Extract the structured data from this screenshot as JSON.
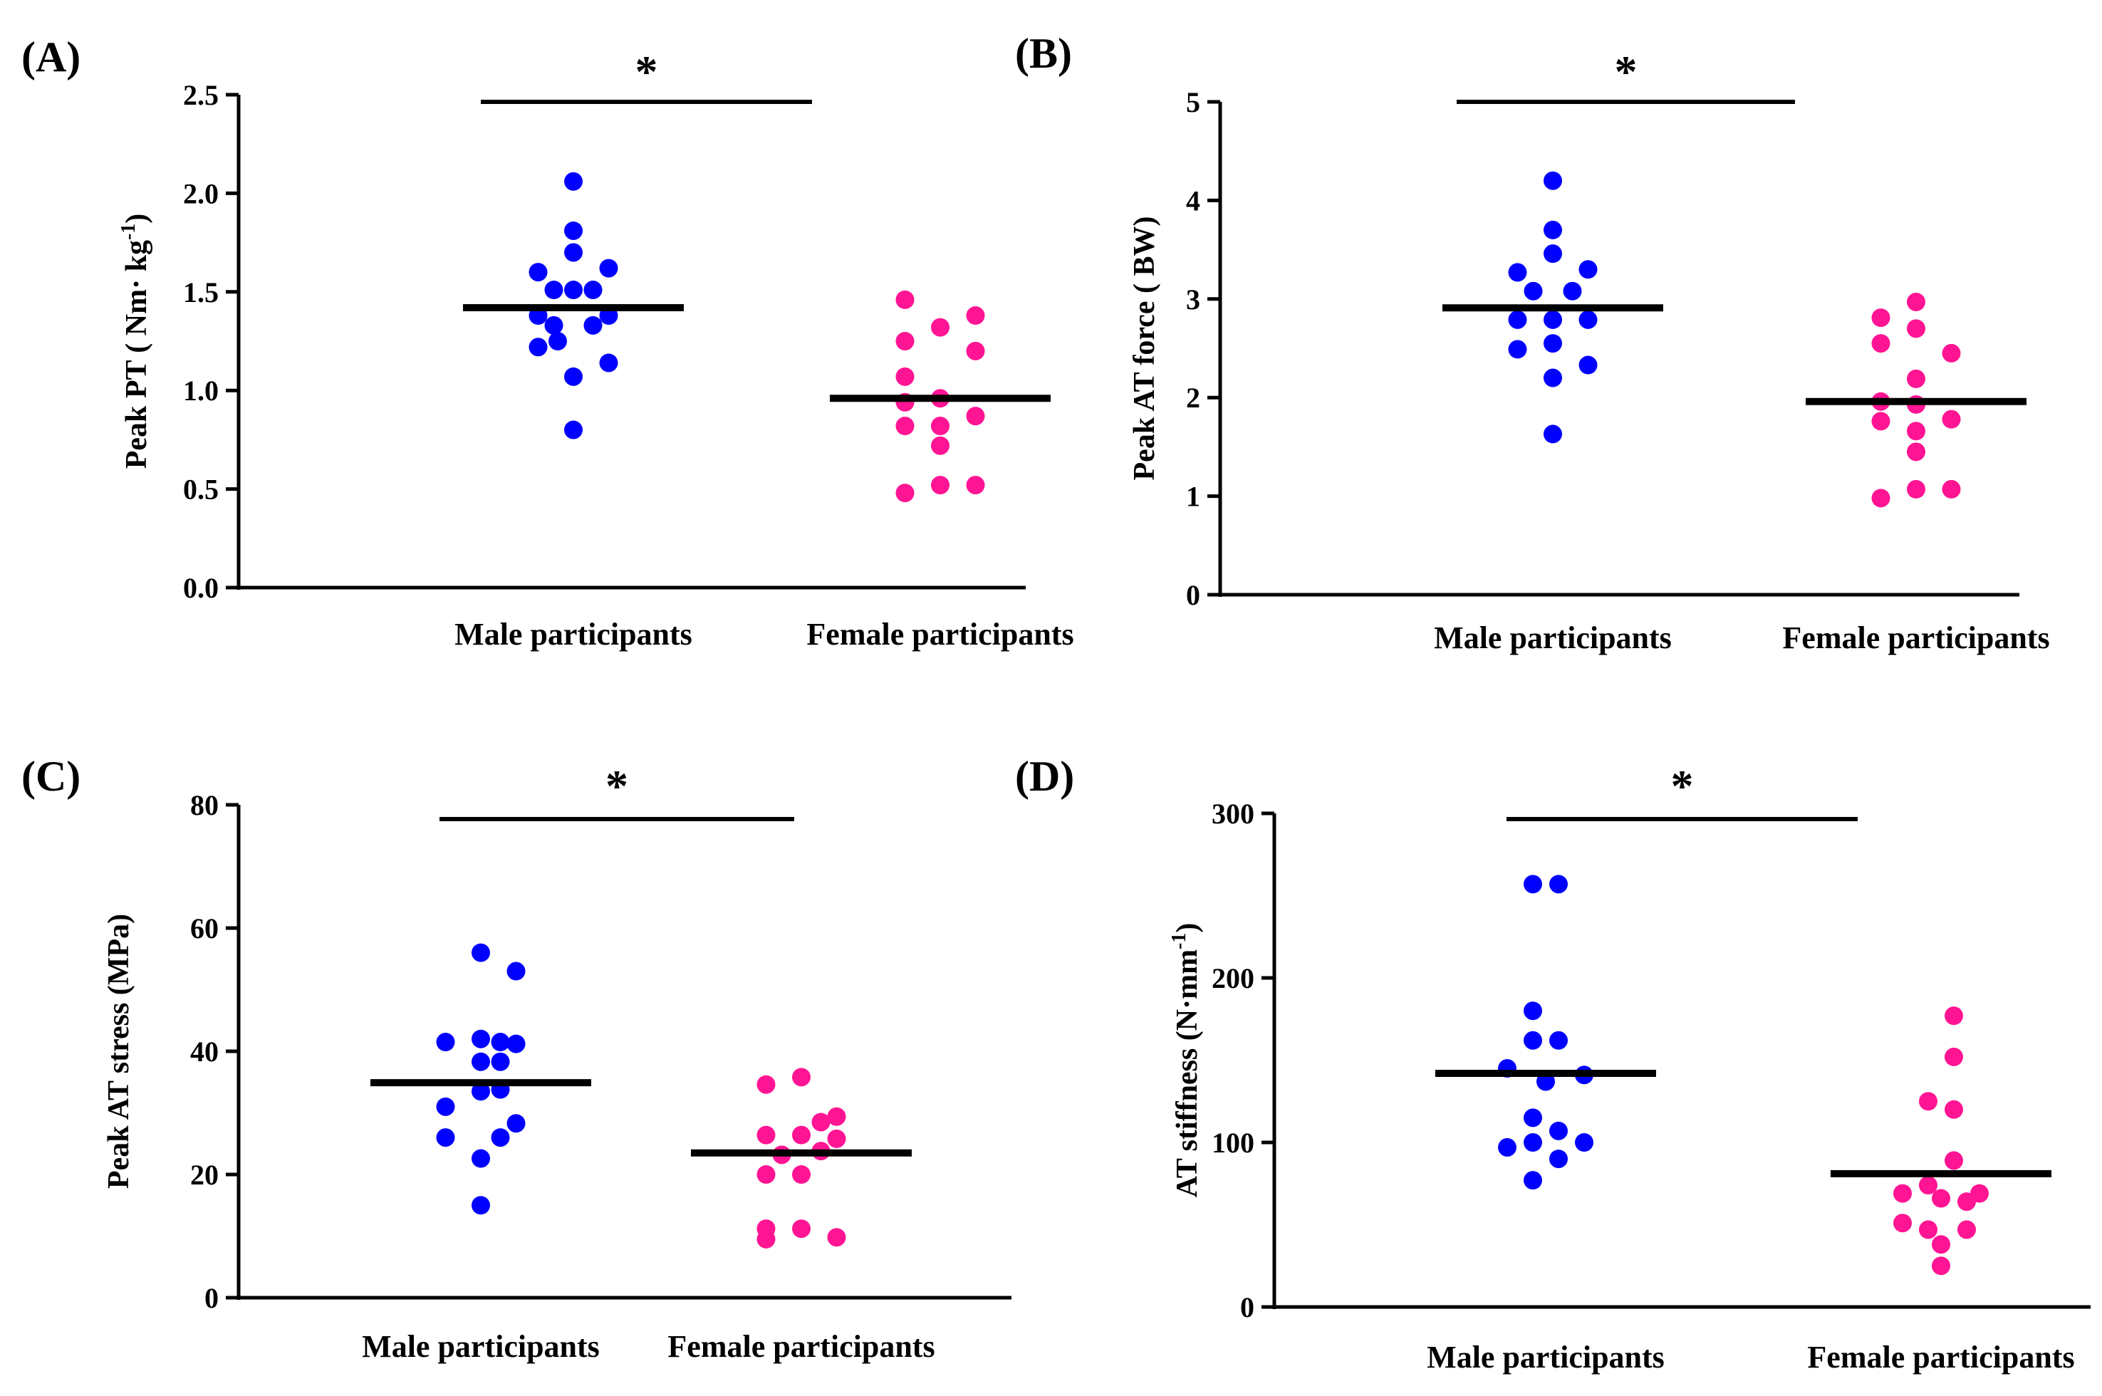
{
  "colors": {
    "male": "#0000ff",
    "female": "#ff1493",
    "axis": "#000000",
    "mean_line": "#000000"
  },
  "chart_data": [
    {
      "type": "scatter",
      "panel": "(A)",
      "ylabel": "Peak PT ( Nm· kg",
      "ylabel_sup": "-1",
      "ylabel_end": ")",
      "ylim": [
        0,
        2.5
      ],
      "yticks": [
        "0.0",
        "0.5",
        "1.0",
        "1.5",
        "2.0",
        "2.5"
      ],
      "ytick_values": [
        0,
        0.5,
        1.0,
        1.5,
        2.0,
        2.5
      ],
      "categories": [
        "Male participants",
        "Female participants"
      ],
      "significance": "*",
      "series": [
        {
          "name": "Male participants",
          "mean": 1.42,
          "points": [
            [
              0,
              2.06
            ],
            [
              0,
              1.81
            ],
            [
              0,
              1.7
            ],
            [
              -0.45,
              1.6
            ],
            [
              0.45,
              1.62
            ],
            [
              -0.25,
              1.51
            ],
            [
              0.25,
              1.51
            ],
            [
              0,
              1.51
            ],
            [
              -0.45,
              1.38
            ],
            [
              0.45,
              1.38
            ],
            [
              -0.25,
              1.33
            ],
            [
              0.25,
              1.33
            ],
            [
              -0.45,
              1.22
            ],
            [
              0.45,
              1.14
            ],
            [
              0,
              1.07
            ],
            [
              -0.2,
              1.25
            ],
            [
              0,
              0.8
            ]
          ]
        },
        {
          "name": "Female participants",
          "mean": 0.96,
          "points": [
            [
              -0.45,
              1.46
            ],
            [
              0.45,
              1.38
            ],
            [
              0,
              1.32
            ],
            [
              -0.45,
              1.25
            ],
            [
              0.45,
              1.2
            ],
            [
              -0.45,
              1.07
            ],
            [
              0,
              0.96
            ],
            [
              -0.45,
              0.94
            ],
            [
              0.45,
              0.87
            ],
            [
              -0.45,
              0.82
            ],
            [
              0,
              0.82
            ],
            [
              0,
              0.72
            ],
            [
              -0.45,
              0.48
            ],
            [
              0,
              0.52
            ],
            [
              0.45,
              0.52
            ]
          ]
        }
      ]
    },
    {
      "type": "scatter",
      "panel": "(B)",
      "ylabel": "Peak AT force ( BW)",
      "ylabel_sup": "",
      "ylabel_end": "",
      "ylim": [
        0,
        5
      ],
      "yticks": [
        "0",
        "1",
        "2",
        "3",
        "4",
        "5"
      ],
      "ytick_values": [
        0,
        1,
        2,
        3,
        4,
        5
      ],
      "categories": [
        "Male participants",
        "Female participants"
      ],
      "significance": "*",
      "series": [
        {
          "name": "Male participants",
          "mean": 2.91,
          "points": [
            [
              0,
              4.2
            ],
            [
              0,
              3.7
            ],
            [
              0,
              3.46
            ],
            [
              -0.45,
              3.27
            ],
            [
              0.45,
              3.3
            ],
            [
              -0.25,
              3.08
            ],
            [
              0.25,
              3.08
            ],
            [
              -0.45,
              2.79
            ],
            [
              0,
              2.79
            ],
            [
              0.45,
              2.79
            ],
            [
              0,
              2.55
            ],
            [
              -0.45,
              2.49
            ],
            [
              0.45,
              2.33
            ],
            [
              0,
              2.2
            ],
            [
              0,
              1.63
            ]
          ]
        },
        {
          "name": "Female participants",
          "mean": 1.96,
          "points": [
            [
              0,
              2.97
            ],
            [
              -0.45,
              2.81
            ],
            [
              0,
              2.7
            ],
            [
              -0.45,
              2.55
            ],
            [
              0,
              2.19
            ],
            [
              0.45,
              2.45
            ],
            [
              -0.45,
              1.96
            ],
            [
              0,
              1.93
            ],
            [
              -0.45,
              1.76
            ],
            [
              0.45,
              1.78
            ],
            [
              0,
              1.66
            ],
            [
              0,
              1.45
            ],
            [
              -0.45,
              0.98
            ],
            [
              0,
              1.07
            ],
            [
              0.45,
              1.07
            ]
          ]
        }
      ]
    },
    {
      "type": "scatter",
      "panel": "(C)",
      "ylabel": "Peak AT stress (MPa)",
      "ylabel_sup": "",
      "ylabel_end": "",
      "ylim": [
        0,
        80
      ],
      "yticks": [
        "0",
        "20",
        "40",
        "60",
        "80"
      ],
      "ytick_values": [
        0,
        20,
        40,
        60,
        80
      ],
      "categories": [
        "Male participants",
        "Female participants"
      ],
      "significance": "*",
      "series": [
        {
          "name": "Male participants",
          "mean": 34.9,
          "points": [
            [
              0,
              56
            ],
            [
              0.45,
              53
            ],
            [
              0,
              42
            ],
            [
              0.25,
              41.5
            ],
            [
              -0.45,
              41.5
            ],
            [
              0.45,
              41.2
            ],
            [
              0,
              38.3
            ],
            [
              0.25,
              38.3
            ],
            [
              0,
              33.5
            ],
            [
              0.25,
              33.8
            ],
            [
              -0.45,
              31
            ],
            [
              0.45,
              28.3
            ],
            [
              -0.45,
              26
            ],
            [
              0.25,
              26
            ],
            [
              0,
              22.6
            ],
            [
              0,
              15
            ]
          ]
        },
        {
          "name": "Female participants",
          "mean": 23.5,
          "points": [
            [
              0,
              35.8
            ],
            [
              -0.45,
              34.6
            ],
            [
              0.45,
              29.4
            ],
            [
              0.25,
              28.5
            ],
            [
              -0.45,
              26.4
            ],
            [
              0,
              26.4
            ],
            [
              0.45,
              25.8
            ],
            [
              -0.25,
              23.2
            ],
            [
              0.25,
              23.8
            ],
            [
              -0.45,
              20
            ],
            [
              0,
              20
            ],
            [
              -0.45,
              11.2
            ],
            [
              0,
              11.2
            ],
            [
              -0.45,
              9.5
            ],
            [
              0.45,
              9.8
            ]
          ]
        }
      ]
    },
    {
      "type": "scatter",
      "panel": "(D)",
      "ylabel": "AT stiffness (N·mm",
      "ylabel_sup": "-1",
      "ylabel_end": ")",
      "ylim": [
        0,
        300
      ],
      "yticks": [
        "0",
        "100",
        "200",
        "300"
      ],
      "ytick_values": [
        0,
        100,
        200,
        300
      ],
      "categories": [
        "Male participants",
        "Female participants"
      ],
      "significance": "*",
      "series": [
        {
          "name": "Male participants",
          "mean": 142,
          "points": [
            [
              -0.15,
              257
            ],
            [
              0.15,
              257
            ],
            [
              -0.15,
              180
            ],
            [
              -0.15,
              162
            ],
            [
              0.15,
              162
            ],
            [
              -0.45,
              145
            ],
            [
              0.45,
              141
            ],
            [
              0,
              137
            ],
            [
              -0.15,
              115
            ],
            [
              0.15,
              107
            ],
            [
              -0.15,
              100
            ],
            [
              0.45,
              100
            ],
            [
              -0.45,
              97
            ],
            [
              0.15,
              90
            ],
            [
              -0.15,
              77
            ]
          ]
        },
        {
          "name": "Female participants",
          "mean": 81,
          "points": [
            [
              0.15,
              177
            ],
            [
              0.15,
              152
            ],
            [
              -0.15,
              125
            ],
            [
              0.15,
              120
            ],
            [
              0.15,
              89
            ],
            [
              -0.15,
              74
            ],
            [
              -0.45,
              69
            ],
            [
              0.45,
              69
            ],
            [
              0,
              66
            ],
            [
              0.3,
              64
            ],
            [
              -0.45,
              51
            ],
            [
              -0.15,
              47
            ],
            [
              0.3,
              47
            ],
            [
              0,
              38
            ],
            [
              0,
              25
            ]
          ]
        }
      ]
    }
  ]
}
